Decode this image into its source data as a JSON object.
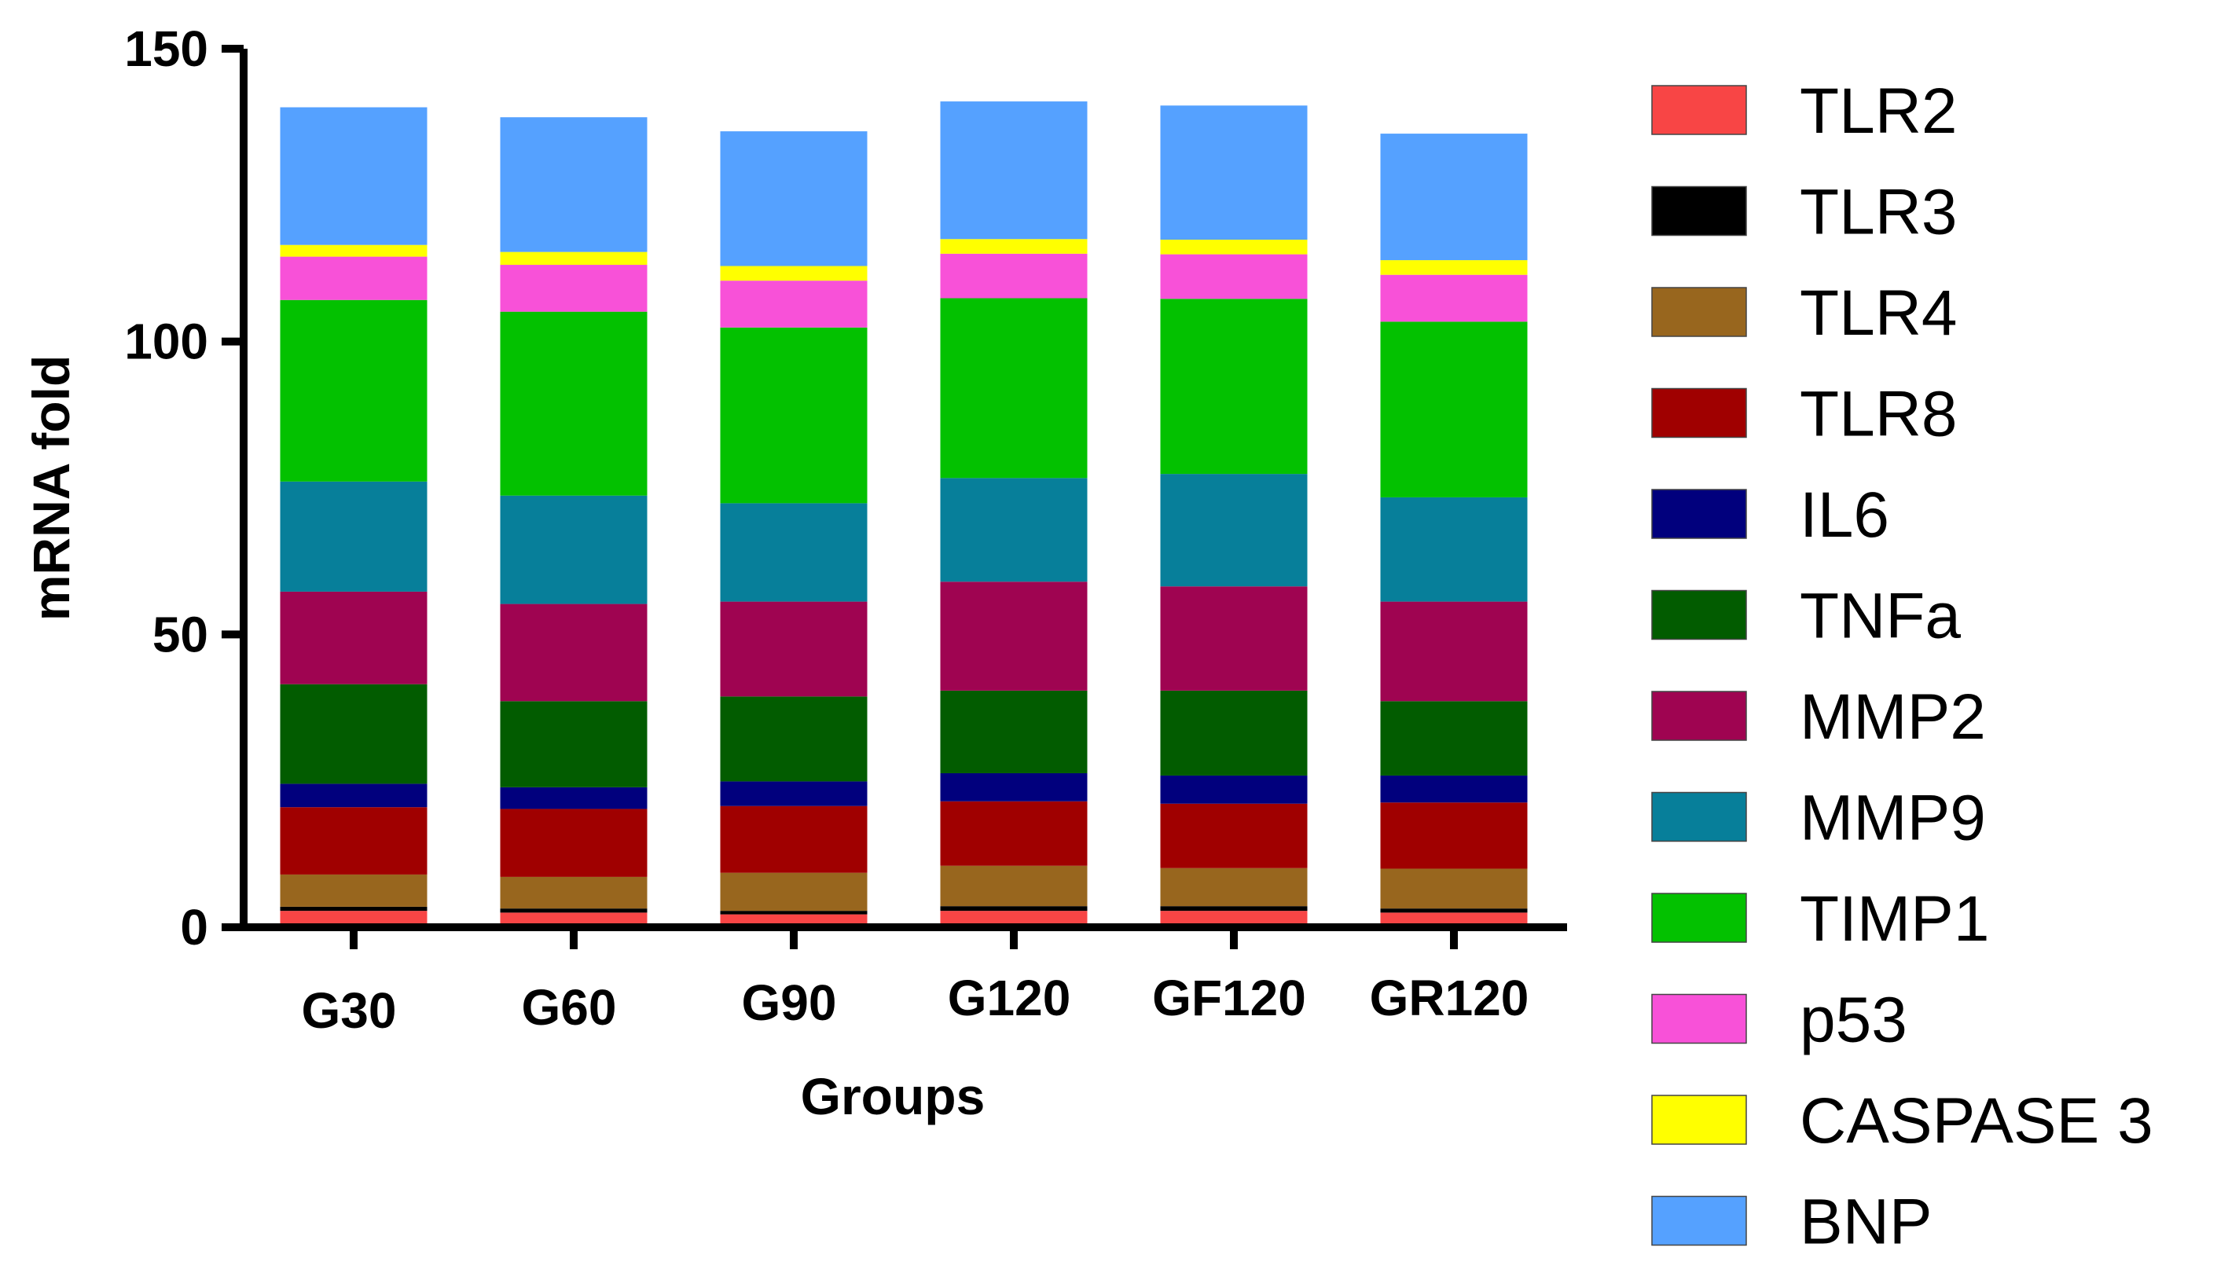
{
  "chart_data": {
    "type": "bar",
    "stacked": true,
    "xlabel": "Groups",
    "ylabel": "mRNA fold",
    "ylim": [
      0,
      150
    ],
    "yticks": [
      "0",
      "50",
      "100",
      "150"
    ],
    "categories": [
      "G30",
      "G60",
      "G90",
      "G120",
      "GF120",
      "GR120"
    ],
    "legend_position": "right",
    "grid": false,
    "series": [
      {
        "name": "TLR2",
        "color": "#f84545",
        "values": [
          2.8,
          2.5,
          2.2,
          2.8,
          2.8,
          2.5
        ]
      },
      {
        "name": "TLR3",
        "color": "#000000",
        "values": [
          0.7,
          0.7,
          0.6,
          0.8,
          0.8,
          0.7
        ]
      },
      {
        "name": "TLR4",
        "color": "#98661e",
        "values": [
          5.5,
          5.4,
          6.5,
          6.9,
          6.5,
          6.8
        ]
      },
      {
        "name": "TLR8",
        "color": "#a00000",
        "values": [
          11.5,
          11.6,
          11.4,
          11.0,
          11.0,
          11.3
        ]
      },
      {
        "name": "IL6",
        "color": "#01007d",
        "values": [
          4.0,
          3.7,
          4.2,
          4.8,
          4.8,
          4.6
        ]
      },
      {
        "name": "TNFa",
        "color": "#025c00",
        "values": [
          17.0,
          14.7,
          14.5,
          14.1,
          14.5,
          12.7
        ]
      },
      {
        "name": "MMP2",
        "color": "#9f0451",
        "values": [
          15.8,
          16.6,
          16.2,
          18.6,
          17.8,
          17.0
        ]
      },
      {
        "name": "MMP9",
        "color": "#077f9a",
        "values": [
          18.8,
          18.5,
          16.8,
          17.7,
          19.2,
          17.8
        ]
      },
      {
        "name": "TIMP1",
        "color": "#03c100",
        "values": [
          31.0,
          31.4,
          30.0,
          30.7,
          29.9,
          30.0
        ]
      },
      {
        "name": "p53",
        "color": "#f851d8",
        "values": [
          7.4,
          8.0,
          8.0,
          7.6,
          7.6,
          8.0
        ]
      },
      {
        "name": "CASPASE 3",
        "color": "#ffff00",
        "values": [
          2.0,
          2.2,
          2.5,
          2.5,
          2.5,
          2.5
        ]
      },
      {
        "name": "BNP",
        "color": "#55a1ff",
        "values": [
          23.5,
          23.0,
          23.0,
          23.5,
          22.9,
          21.6
        ]
      }
    ]
  }
}
